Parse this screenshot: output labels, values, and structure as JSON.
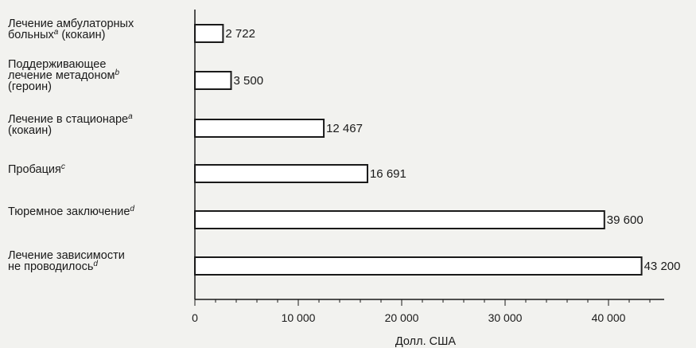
{
  "chart_data": {
    "type": "bar",
    "orientation": "horizontal",
    "categories": [
      "Лечение амбулаторных больных (кокаин)",
      "Поддерживающее лечение метадоном (героин)",
      "Лечение в стационаре (кокаин)",
      "Пробация",
      "Тюремное заключение",
      "Лечение зависимости не проводилось"
    ],
    "category_lines": [
      [
        [
          "Лечение амбулаторных",
          ""
        ],
        [
          "больных",
          "a"
        ],
        [
          " (кокаин)",
          ""
        ]
      ],
      [
        [
          "Поддерживающее",
          ""
        ],
        [
          "лечение метадоном",
          "b"
        ],
        [
          "(героин)",
          ""
        ]
      ],
      [
        [
          "Лечение в стационаре",
          "a"
        ],
        [
          "(кокаин)",
          ""
        ]
      ],
      [
        [
          "Пробация",
          "c"
        ]
      ],
      [
        [
          "Тюремное заключение",
          "d"
        ]
      ],
      [
        [
          "Лечение зависимости",
          ""
        ],
        [
          "не проводилось",
          "d"
        ]
      ]
    ],
    "values": [
      2722,
      3500,
      12467,
      16691,
      39600,
      43200
    ],
    "value_labels": [
      "2 722",
      "3 500",
      "12 467",
      "16 691",
      "39 600",
      "43 200"
    ],
    "xlabel": "Долл. США",
    "xlim": [
      0,
      45000
    ],
    "xticks": [
      0,
      10000,
      20000,
      30000,
      40000
    ],
    "xtick_labels": [
      "0",
      "10 000",
      "20 000",
      "30 000",
      "40 000"
    ],
    "grid": false,
    "colors": {
      "bar_fill": "#ffffff",
      "bar_stroke": "#1a1a1a",
      "background": "#f2f2ef"
    }
  }
}
